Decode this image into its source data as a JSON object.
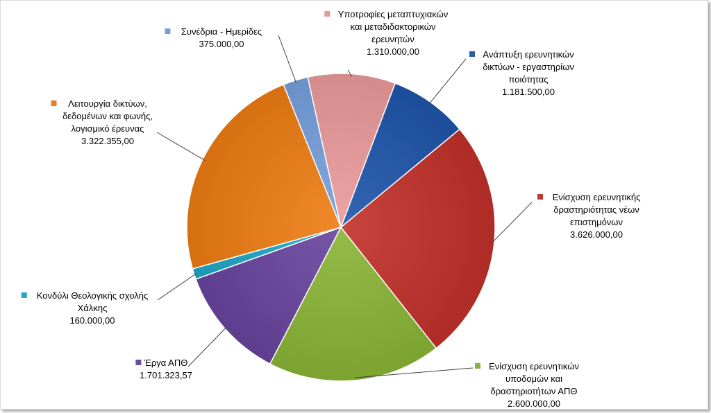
{
  "chart_data": {
    "type": "pie",
    "title": "",
    "series": [
      {
        "name": "Ανάπτυξη ερευνητικών δικτύων - εργαστηρίων ποιότητας",
        "label_lines": [
          "Ανάπτυξη ερευνητικών",
          "δικτύων - εργαστηρίων",
          "ποιότητας"
        ],
        "value_text": "1.181.500,00",
        "value": 1181500.0,
        "color": "#2a5caa"
      },
      {
        "name": "Ενίσχυση ερευνητικής δραστηριότητας νέων επιστημόνων",
        "label_lines": [
          "Ενίσχυση ερευνητικής",
          "δραστηριότητας νέων",
          "επιστημόνων"
        ],
        "value_text": "3.626.000,00",
        "value": 3626000.0,
        "color": "#be3a34"
      },
      {
        "name": "Ενίσχυση ερευνητικών υποδομών και δραστηριοτήτων ΑΠΘ",
        "label_lines": [
          "Ενίσχυση ερευνητικών",
          "υποδομών και",
          "δραστηριοτήτων ΑΠΘ"
        ],
        "value_text": "2.600.000,00",
        "value": 2600000.0,
        "color": "#8bb23f"
      },
      {
        "name": "Έργα ΑΠΘ",
        "label_lines": [
          "Έργα ΑΠΘ"
        ],
        "value_text": "1.701.323,57",
        "value": 1701323.57,
        "color": "#6d4c9e"
      },
      {
        "name": "Κονδύλι Θεολογικής σχολής Χάλκης",
        "label_lines": [
          "Κονδύλι Θεολογικής σχολής",
          "Χάλκης"
        ],
        "value_text": "160.000,00",
        "value": 160000.0,
        "color": "#2aa6c4"
      },
      {
        "name": "Λειτουργία δικτύων, δεδομένων και φωνής, λογισμικό έρευνας",
        "label_lines": [
          "Λειτουργία δικτύων,",
          "δεδομένων και φωνής,",
          "λογισμικό έρευνας"
        ],
        "value_text": "3.322.355,00",
        "value": 3322355.0,
        "color": "#e57f1f"
      },
      {
        "name": "Συνέδρια - Ημερίδες",
        "label_lines": [
          "Συνέδρια - Ημερίδες"
        ],
        "value_text": "375.000,00",
        "value": 375000.0,
        "color": "#7a9fd6"
      },
      {
        "name": "Υποτροφίες μεταπτυχιακών και μεταδιδακτορικών ερευνητών",
        "label_lines": [
          "Υποτροφίες μεταπτυχιακών",
          "και μεταδιδακτορικών",
          "ερευνητών"
        ],
        "value_text": "1.310.000,00",
        "value": 1310000.0,
        "color": "#e39a9a"
      }
    ],
    "legend": "none",
    "data_labels": "outside with leader lines"
  }
}
